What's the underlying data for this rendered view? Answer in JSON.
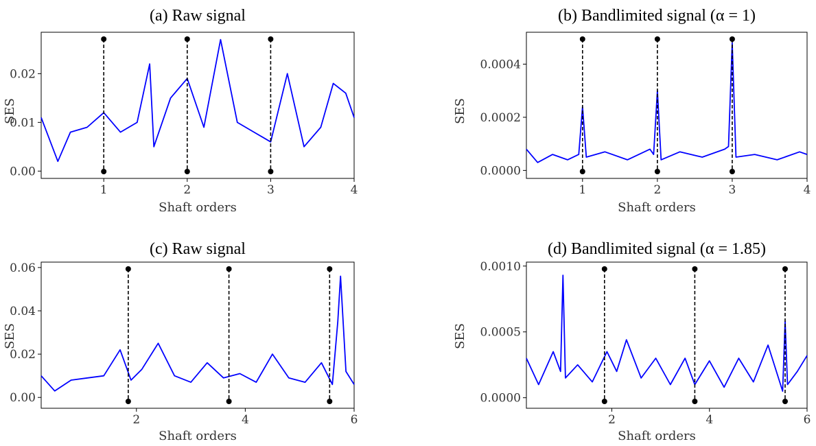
{
  "chart_data": [
    {
      "type": "line",
      "title": "(a) Raw signal",
      "xlabel": "Shaft orders",
      "ylabel": "SES",
      "xlim": [
        0.25,
        4.0
      ],
      "ylim": [
        -0.0015,
        0.0285
      ],
      "xticks": [
        1,
        2,
        3,
        4
      ],
      "xtick_labels": [
        "1",
        "2",
        "3",
        "4"
      ],
      "yticks": [
        0.0,
        0.01,
        0.02
      ],
      "ytick_labels": [
        "0.00",
        "0.01",
        "0.02"
      ],
      "markers": [
        1,
        2,
        3
      ],
      "series": [
        {
          "color": "#0000ff",
          "x": [
            0.25,
            0.45,
            0.6,
            0.8,
            1.0,
            1.2,
            1.4,
            1.55,
            1.6,
            1.8,
            2.0,
            2.2,
            2.4,
            2.6,
            2.8,
            3.0,
            3.2,
            3.4,
            3.6,
            3.75,
            3.9,
            4.0
          ],
          "y": [
            0.011,
            0.002,
            0.008,
            0.009,
            0.012,
            0.008,
            0.01,
            0.022,
            0.005,
            0.015,
            0.019,
            0.009,
            0.027,
            0.01,
            0.008,
            0.006,
            0.02,
            0.005,
            0.009,
            0.018,
            0.016,
            0.011
          ]
        }
      ]
    },
    {
      "type": "line",
      "title": "(b) Bandlimited signal (α = 1)",
      "xlabel": "Shaft orders",
      "ylabel": "SES",
      "xlim": [
        0.25,
        4.0
      ],
      "ylim": [
        -3e-05,
        0.00052
      ],
      "xticks": [
        1,
        2,
        3,
        4
      ],
      "xtick_labels": [
        "1",
        "2",
        "3",
        "4"
      ],
      "yticks": [
        0.0,
        0.0002,
        0.0004
      ],
      "ytick_labels": [
        "0.0000",
        "0.0002",
        "0.0004"
      ],
      "markers": [
        1,
        2,
        3
      ],
      "series": [
        {
          "color": "#0000ff",
          "x": [
            0.25,
            0.4,
            0.6,
            0.8,
            0.95,
            1.0,
            1.05,
            1.3,
            1.6,
            1.9,
            1.95,
            2.0,
            2.05,
            2.3,
            2.6,
            2.9,
            2.95,
            3.0,
            3.05,
            3.3,
            3.6,
            3.9,
            4.0
          ],
          "y": [
            8e-05,
            3e-05,
            6e-05,
            4e-05,
            6e-05,
            0.00024,
            5e-05,
            7e-05,
            4e-05,
            8e-05,
            6e-05,
            0.0003,
            4e-05,
            7e-05,
            5e-05,
            8e-05,
            9e-05,
            0.00048,
            5e-05,
            6e-05,
            4e-05,
            7e-05,
            6e-05
          ]
        }
      ]
    },
    {
      "type": "line",
      "title": "(c) Raw signal",
      "xlabel": "Shaft orders",
      "ylabel": "SES",
      "xlim": [
        0.25,
        6.0
      ],
      "ylim": [
        -0.005,
        0.0625
      ],
      "xticks": [
        2,
        4,
        6
      ],
      "xtick_labels": [
        "2",
        "4",
        "6"
      ],
      "yticks": [
        0.0,
        0.02,
        0.04,
        0.06
      ],
      "ytick_labels": [
        "0.00",
        "0.02",
        "0.04",
        "0.06"
      ],
      "markers": [
        1.85,
        3.7,
        5.55
      ],
      "series": [
        {
          "color": "#0000ff",
          "x": [
            0.25,
            0.5,
            0.8,
            1.1,
            1.4,
            1.7,
            1.9,
            2.1,
            2.4,
            2.7,
            3.0,
            3.3,
            3.6,
            3.9,
            4.2,
            4.5,
            4.8,
            5.1,
            5.4,
            5.6,
            5.7,
            5.75,
            5.85,
            6.0
          ],
          "y": [
            0.01,
            0.003,
            0.008,
            0.009,
            0.01,
            0.022,
            0.008,
            0.013,
            0.025,
            0.01,
            0.007,
            0.016,
            0.009,
            0.011,
            0.007,
            0.02,
            0.009,
            0.007,
            0.016,
            0.006,
            0.035,
            0.056,
            0.012,
            0.006
          ]
        }
      ]
    },
    {
      "type": "line",
      "title": "(d) Bandlimited signal (α = 1.85)",
      "xlabel": "Shaft orders",
      "ylabel": "SES",
      "xlim": [
        0.25,
        6.0
      ],
      "ylim": [
        -8e-05,
        0.00103
      ],
      "xticks": [
        2,
        4,
        6
      ],
      "xtick_labels": [
        "2",
        "4",
        "6"
      ],
      "yticks": [
        0.0,
        0.0005,
        0.001
      ],
      "ytick_labels": [
        "0.0000",
        "0.0005",
        "0.0010"
      ],
      "markers": [
        1.85,
        3.7,
        5.55
      ],
      "series": [
        {
          "color": "#0000ff",
          "x": [
            0.25,
            0.5,
            0.8,
            0.95,
            1.0,
            1.05,
            1.3,
            1.6,
            1.9,
            2.1,
            2.3,
            2.6,
            2.9,
            3.2,
            3.5,
            3.7,
            4.0,
            4.3,
            4.6,
            4.9,
            5.2,
            5.5,
            5.55,
            5.6,
            5.8,
            6.0
          ],
          "y": [
            0.0003,
            0.0001,
            0.00035,
            0.0002,
            0.00093,
            0.00015,
            0.00025,
            0.00012,
            0.00035,
            0.0002,
            0.00044,
            0.00015,
            0.0003,
            0.0001,
            0.0003,
            0.0001,
            0.00028,
            8e-05,
            0.0003,
            0.00012,
            0.0004,
            5e-05,
            0.00058,
            0.0001,
            0.0002,
            0.00032
          ]
        }
      ]
    }
  ]
}
